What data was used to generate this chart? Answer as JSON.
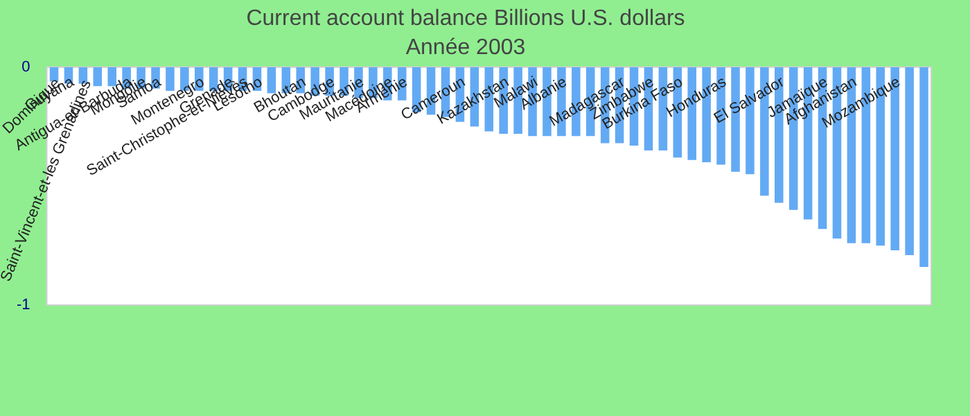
{
  "chart_data": {
    "type": "bar",
    "title": "Current account balance Billions U.S. dollars",
    "subtitle": "Année 2003",
    "categories": [
      "Dominique",
      "Guyana",
      "Saint-Vincent-et-les Grenadines",
      null,
      null,
      "Antigua-et-Barbuda",
      "Mongolie",
      "Samoa",
      null,
      null,
      "Montenegro",
      null,
      "Grenade",
      "Saint-Christophe-et-Niévès",
      "Lesotho",
      null,
      null,
      "Bhoutan",
      null,
      "Cambodge",
      null,
      "Mauritanie",
      null,
      "Macédoine",
      "Arménie",
      null,
      null,
      null,
      "Cameroun",
      null,
      null,
      "Kazakhstan",
      null,
      "Malawi",
      null,
      "Albanie",
      null,
      null,
      null,
      "Madagascar",
      null,
      "Zimbabwe",
      null,
      "Burkina Faso",
      null,
      null,
      "Honduras",
      null,
      null,
      null,
      "El Salvador",
      null,
      null,
      "Jamaïque",
      null,
      "Afghanistan",
      null,
      null,
      "Mozambique",
      null,
      null
    ],
    "values": [
      -0.06,
      -0.07,
      -0.07,
      -0.08,
      -0.08,
      -0.09,
      -0.09,
      -0.09,
      -0.1,
      -0.1,
      -0.1,
      -0.1,
      -0.1,
      -0.1,
      -0.1,
      -0.11,
      -0.11,
      -0.11,
      -0.12,
      -0.12,
      -0.12,
      -0.13,
      -0.13,
      -0.14,
      -0.14,
      -0.19,
      -0.2,
      -0.21,
      -0.23,
      -0.25,
      -0.27,
      -0.28,
      -0.28,
      -0.29,
      -0.29,
      -0.29,
      -0.29,
      -0.29,
      -0.32,
      -0.32,
      -0.33,
      -0.35,
      -0.35,
      -0.38,
      -0.39,
      -0.4,
      -0.41,
      -0.44,
      -0.45,
      -0.54,
      -0.57,
      -0.6,
      -0.64,
      -0.68,
      -0.72,
      -0.74,
      -0.74,
      -0.75,
      -0.77,
      -0.79,
      -0.84
    ],
    "color": "#63aaf4",
    "ylim": [
      -1,
      0
    ],
    "yticks": [
      0,
      -1
    ],
    "grid": false,
    "legend": false
  }
}
